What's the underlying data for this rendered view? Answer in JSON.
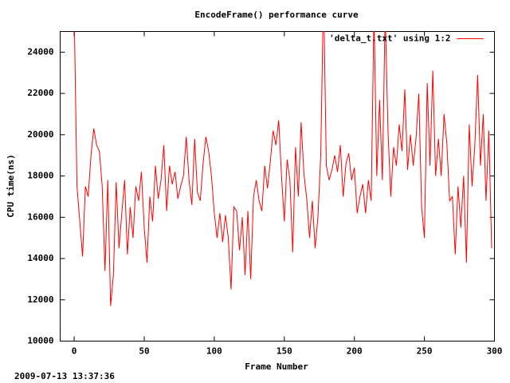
{
  "chart_data": {
    "type": "line",
    "title": "EncodeFrame() performance curve",
    "xlabel": "Frame Number",
    "ylabel": "CPU time(ns)",
    "timestamp": "2009-07-13 13:37:36",
    "xlim": [
      -10,
      300
    ],
    "ylim": [
      10000,
      25000
    ],
    "xticks": [
      0,
      50,
      100,
      150,
      200,
      250,
      300
    ],
    "yticks": [
      10000,
      12000,
      14000,
      16000,
      18000,
      20000,
      22000,
      24000
    ],
    "grid": false,
    "legend_position": "top-right",
    "x": [
      0,
      2,
      4,
      6,
      8,
      10,
      12,
      14,
      16,
      18,
      20,
      22,
      24,
      26,
      28,
      30,
      32,
      34,
      36,
      38,
      40,
      42,
      44,
      46,
      48,
      50,
      52,
      54,
      56,
      58,
      60,
      62,
      64,
      66,
      68,
      70,
      72,
      74,
      76,
      78,
      80,
      82,
      84,
      86,
      88,
      90,
      92,
      94,
      96,
      98,
      100,
      102,
      104,
      106,
      108,
      110,
      112,
      114,
      116,
      118,
      120,
      122,
      124,
      126,
      128,
      130,
      132,
      134,
      136,
      138,
      140,
      142,
      144,
      146,
      148,
      150,
      152,
      154,
      156,
      158,
      160,
      162,
      164,
      166,
      168,
      170,
      172,
      174,
      176,
      178,
      180,
      182,
      184,
      186,
      188,
      190,
      192,
      194,
      196,
      198,
      200,
      202,
      204,
      206,
      208,
      210,
      212,
      214,
      216,
      218,
      220,
      222,
      224,
      226,
      228,
      230,
      232,
      234,
      236,
      238,
      240,
      242,
      244,
      246,
      248,
      250,
      252,
      254,
      256,
      258,
      260,
      262,
      264,
      266,
      268,
      270,
      272,
      274,
      276,
      278,
      280,
      282,
      284,
      286,
      288,
      290,
      292,
      294,
      296,
      298
    ],
    "series": [
      {
        "name": "'delta_t.txt' using 1:2",
        "color": "#ff0000",
        "values": [
          26000,
          17500,
          15800,
          14100,
          17500,
          17000,
          19000,
          20300,
          19500,
          19200,
          17500,
          13400,
          17800,
          11700,
          13200,
          17700,
          14500,
          16200,
          17800,
          14200,
          16500,
          15000,
          17500,
          16800,
          18200,
          15500,
          13800,
          17000,
          15800,
          18500,
          16900,
          17800,
          19500,
          16300,
          18500,
          17600,
          18200,
          16900,
          17500,
          18000,
          19900,
          17800,
          16600,
          19800,
          17200,
          16800,
          18600,
          19900,
          19200,
          18000,
          16200,
          15000,
          16200,
          14800,
          16100,
          15000,
          12500,
          16500,
          16300,
          14400,
          16000,
          13200,
          16300,
          13000,
          17000,
          17800,
          16800,
          16300,
          18500,
          17400,
          18700,
          20200,
          19500,
          20700,
          18000,
          15800,
          18800,
          17800,
          14300,
          19400,
          17000,
          20600,
          18100,
          16900,
          15000,
          16800,
          14500,
          16000,
          19000,
          27000,
          18500,
          17800,
          18300,
          19000,
          18200,
          19500,
          17000,
          18600,
          19100,
          17800,
          18400,
          16200,
          17000,
          17600,
          16200,
          17800,
          16800,
          26000,
          18000,
          21700,
          17800,
          26000,
          20200,
          17000,
          19400,
          18500,
          20500,
          19200,
          22200,
          18300,
          20000,
          18500,
          19800,
          22000,
          16500,
          15000,
          22500,
          18500,
          23100,
          18000,
          19800,
          18000,
          21000,
          19600,
          16800,
          17000,
          14200,
          17500,
          15500,
          18000,
          13800,
          20500,
          17500,
          19500,
          22900,
          18500,
          21000,
          16800,
          20200,
          14500
        ]
      }
    ]
  }
}
